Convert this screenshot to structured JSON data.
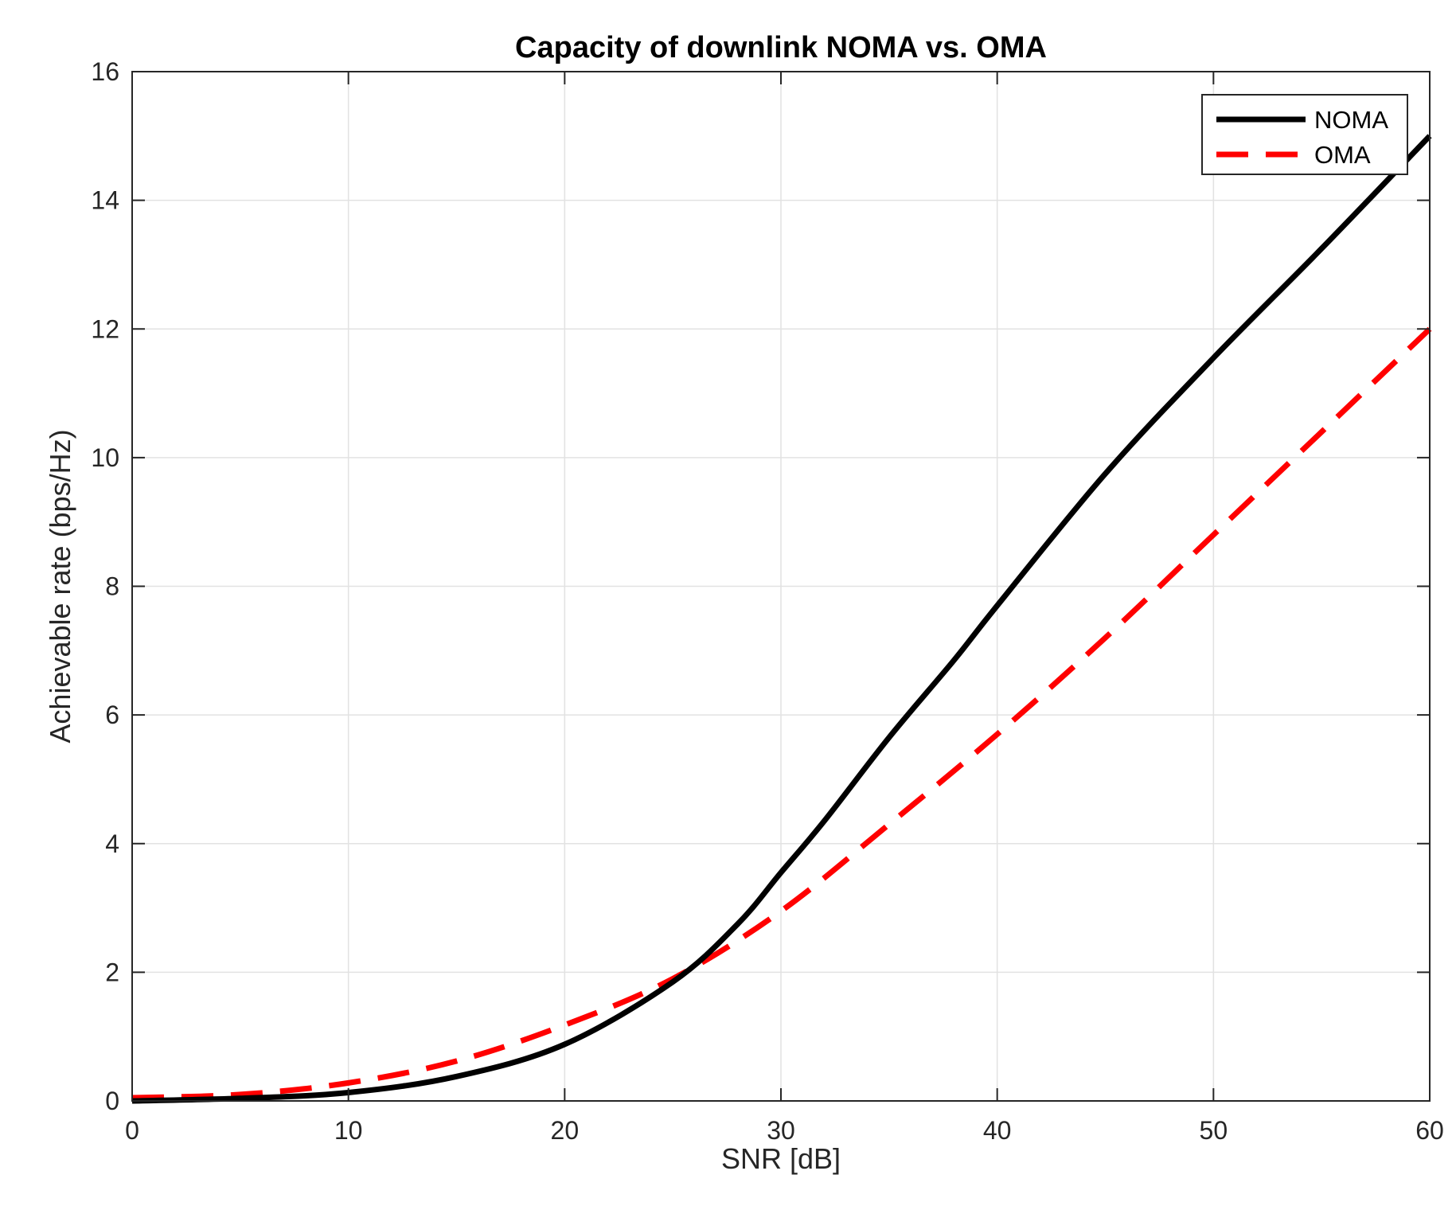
{
  "chart_data": {
    "type": "line",
    "title": "Capacity of downlink NOMA vs. OMA",
    "xlabel": "SNR [dB]",
    "ylabel": "Achievable rate (bps/Hz)",
    "xlim": [
      0,
      60
    ],
    "ylim": [
      0,
      16
    ],
    "xticks": [
      0,
      10,
      20,
      30,
      40,
      50,
      60
    ],
    "yticks": [
      0,
      2,
      4,
      6,
      8,
      10,
      12,
      14,
      16
    ],
    "grid": true,
    "legend_position": "top-right",
    "series": [
      {
        "name": "NOMA",
        "color": "#000000",
        "style": "solid",
        "x": [
          0,
          5,
          10,
          15,
          20,
          25,
          28,
          30,
          32,
          35,
          38,
          40,
          45,
          50,
          55,
          60
        ],
        "y": [
          0.0,
          0.04,
          0.13,
          0.38,
          0.88,
          1.85,
          2.75,
          3.55,
          4.35,
          5.65,
          6.85,
          7.7,
          9.75,
          11.55,
          13.25,
          15.0
        ]
      },
      {
        "name": "OMA",
        "color": "#ff0000",
        "style": "dashed",
        "x": [
          0,
          5,
          10,
          15,
          20,
          25,
          30,
          35,
          40,
          45,
          50,
          55,
          60
        ],
        "y": [
          0.05,
          0.1,
          0.28,
          0.62,
          1.18,
          1.9,
          2.95,
          4.3,
          5.7,
          7.2,
          8.8,
          10.4,
          12.0
        ]
      }
    ]
  }
}
